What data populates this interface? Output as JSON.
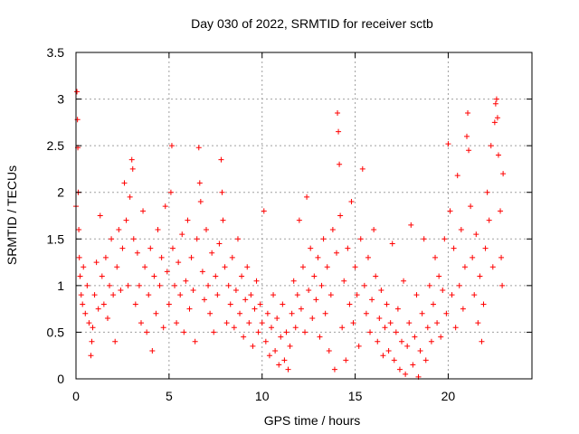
{
  "chart_data": {
    "type": "scatter",
    "title": "Day 030 of 2022, SRMTID for receiver sctb",
    "xlabel": "GPS time / hours",
    "ylabel": "SRMTID / TECUs",
    "xlim": [
      0,
      24.5
    ],
    "ylim": [
      0,
      3.5
    ],
    "grid": true,
    "marker": "plus",
    "color": "#ff0000",
    "x_ticks": [
      0,
      5,
      10,
      15,
      20
    ],
    "x_tick_labels": [
      "0",
      "5",
      "10",
      "15",
      "20"
    ],
    "y_ticks": [
      0,
      0.5,
      1,
      1.5,
      2,
      2.5,
      3,
      3.5
    ],
    "y_tick_labels": [
      "0",
      "0.5",
      "1",
      "1.5",
      "2",
      "2.5",
      "3",
      "3.5"
    ],
    "series": [
      {
        "name": "SRMTID",
        "points": [
          [
            0.0,
            1.85
          ],
          [
            0.05,
            3.08
          ],
          [
            0.08,
            2.78
          ],
          [
            0.1,
            2.48
          ],
          [
            0.12,
            2.0
          ],
          [
            0.15,
            1.6
          ],
          [
            0.18,
            1.3
          ],
          [
            0.22,
            1.1
          ],
          [
            0.28,
            0.9
          ],
          [
            0.35,
            0.8
          ],
          [
            0.4,
            1.2
          ],
          [
            0.5,
            0.7
          ],
          [
            0.6,
            1.0
          ],
          [
            0.7,
            0.6
          ],
          [
            0.8,
            0.25
          ],
          [
            0.85,
            0.4
          ],
          [
            0.9,
            0.55
          ],
          [
            1.0,
            0.9
          ],
          [
            1.1,
            1.25
          ],
          [
            1.2,
            0.75
          ],
          [
            1.3,
            1.75
          ],
          [
            1.4,
            1.1
          ],
          [
            1.5,
            0.8
          ],
          [
            1.6,
            1.3
          ],
          [
            1.7,
            0.65
          ],
          [
            1.8,
            1.0
          ],
          [
            1.9,
            1.5
          ],
          [
            2.0,
            0.9
          ],
          [
            2.1,
            0.4
          ],
          [
            2.2,
            1.2
          ],
          [
            2.3,
            1.6
          ],
          [
            2.4,
            0.95
          ],
          [
            2.5,
            1.4
          ],
          [
            2.6,
            2.1
          ],
          [
            2.7,
            1.7
          ],
          [
            2.8,
            1.0
          ],
          [
            2.9,
            1.95
          ],
          [
            3.0,
            2.35
          ],
          [
            3.05,
            2.25
          ],
          [
            3.1,
            1.5
          ],
          [
            3.2,
            0.8
          ],
          [
            3.3,
            1.35
          ],
          [
            3.4,
            1.0
          ],
          [
            3.5,
            0.6
          ],
          [
            3.6,
            1.8
          ],
          [
            3.7,
            1.2
          ],
          [
            3.8,
            0.5
          ],
          [
            3.9,
            0.9
          ],
          [
            4.0,
            1.4
          ],
          [
            4.1,
            0.3
          ],
          [
            4.2,
            1.1
          ],
          [
            4.3,
            0.7
          ],
          [
            4.4,
            1.6
          ],
          [
            4.5,
            1.0
          ],
          [
            4.6,
            1.3
          ],
          [
            4.7,
            0.55
          ],
          [
            4.8,
            1.85
          ],
          [
            4.9,
            1.15
          ],
          [
            5.0,
            0.8
          ],
          [
            5.1,
            2.0
          ],
          [
            5.15,
            2.5
          ],
          [
            5.2,
            1.4
          ],
          [
            5.3,
            1.0
          ],
          [
            5.4,
            0.6
          ],
          [
            5.5,
            1.25
          ],
          [
            5.6,
            0.9
          ],
          [
            5.7,
            1.55
          ],
          [
            5.8,
            0.5
          ],
          [
            5.9,
            1.05
          ],
          [
            6.0,
            1.7
          ],
          [
            6.1,
            0.75
          ],
          [
            6.2,
            1.3
          ],
          [
            6.3,
            0.95
          ],
          [
            6.4,
            0.4
          ],
          [
            6.5,
            1.5
          ],
          [
            6.6,
            2.48
          ],
          [
            6.65,
            2.1
          ],
          [
            6.7,
            1.9
          ],
          [
            6.8,
            1.15
          ],
          [
            6.9,
            0.85
          ],
          [
            7.0,
            1.6
          ],
          [
            7.1,
            1.0
          ],
          [
            7.2,
            0.7
          ],
          [
            7.3,
            1.35
          ],
          [
            7.4,
            0.5
          ],
          [
            7.5,
            1.1
          ],
          [
            7.6,
            0.9
          ],
          [
            7.7,
            1.45
          ],
          [
            7.8,
            2.35
          ],
          [
            7.85,
            2.0
          ],
          [
            7.9,
            1.7
          ],
          [
            8.0,
            1.2
          ],
          [
            8.1,
            0.6
          ],
          [
            8.2,
            1.0
          ],
          [
            8.3,
            0.8
          ],
          [
            8.4,
            1.3
          ],
          [
            8.5,
            0.55
          ],
          [
            8.6,
            0.95
          ],
          [
            8.7,
            1.5
          ],
          [
            8.8,
            0.7
          ],
          [
            8.9,
            1.1
          ],
          [
            9.0,
            0.45
          ],
          [
            9.1,
            0.85
          ],
          [
            9.2,
            1.2
          ],
          [
            9.3,
            0.6
          ],
          [
            9.4,
            0.9
          ],
          [
            9.5,
            0.35
          ],
          [
            9.6,
            0.75
          ],
          [
            9.7,
            1.05
          ],
          [
            9.8,
            0.5
          ],
          [
            9.9,
            0.8
          ],
          [
            10.0,
            0.6
          ],
          [
            10.1,
            1.8
          ],
          [
            10.2,
            0.4
          ],
          [
            10.3,
            0.7
          ],
          [
            10.4,
            0.25
          ],
          [
            10.5,
            0.55
          ],
          [
            10.6,
            0.9
          ],
          [
            10.7,
            0.3
          ],
          [
            10.8,
            0.65
          ],
          [
            10.9,
            0.15
          ],
          [
            11.0,
            0.45
          ],
          [
            11.1,
            0.8
          ],
          [
            11.2,
            0.2
          ],
          [
            11.3,
            0.5
          ],
          [
            11.4,
            0.1
          ],
          [
            11.5,
            0.35
          ],
          [
            11.6,
            0.7
          ],
          [
            11.7,
            1.05
          ],
          [
            11.8,
            0.55
          ],
          [
            11.9,
            0.9
          ],
          [
            12.0,
            1.7
          ],
          [
            12.1,
            0.75
          ],
          [
            12.2,
            1.2
          ],
          [
            12.3,
            0.5
          ],
          [
            12.4,
            1.95
          ],
          [
            12.5,
            0.95
          ],
          [
            12.6,
            1.4
          ],
          [
            12.7,
            0.65
          ],
          [
            12.8,
            1.1
          ],
          [
            12.9,
            0.85
          ],
          [
            13.0,
            1.3
          ],
          [
            13.1,
            0.45
          ],
          [
            13.2,
            1.0
          ],
          [
            13.3,
            1.5
          ],
          [
            13.4,
            0.7
          ],
          [
            13.5,
            1.2
          ],
          [
            13.6,
            0.3
          ],
          [
            13.7,
            0.9
          ],
          [
            13.8,
            1.6
          ],
          [
            13.9,
            0.1
          ],
          [
            14.0,
            1.35
          ],
          [
            14.05,
            2.85
          ],
          [
            14.1,
            2.65
          ],
          [
            14.15,
            2.3
          ],
          [
            14.2,
            1.75
          ],
          [
            14.3,
            0.55
          ],
          [
            14.4,
            1.05
          ],
          [
            14.5,
            0.2
          ],
          [
            14.6,
            1.4
          ],
          [
            14.7,
            0.8
          ],
          [
            14.8,
            1.9
          ],
          [
            14.9,
            0.6
          ],
          [
            15.0,
            1.2
          ],
          [
            15.1,
            0.9
          ],
          [
            15.2,
            0.35
          ],
          [
            15.3,
            1.5
          ],
          [
            15.4,
            2.25
          ],
          [
            15.5,
            1.0
          ],
          [
            15.6,
            0.7
          ],
          [
            15.7,
            1.3
          ],
          [
            15.8,
            0.5
          ],
          [
            15.9,
            0.85
          ],
          [
            16.0,
            1.6
          ],
          [
            16.1,
            1.1
          ],
          [
            16.2,
            0.4
          ],
          [
            16.3,
            0.65
          ],
          [
            16.4,
            0.95
          ],
          [
            16.5,
            0.25
          ],
          [
            16.6,
            0.55
          ],
          [
            16.7,
            0.8
          ],
          [
            16.8,
            0.3
          ],
          [
            16.9,
            0.6
          ],
          [
            17.0,
            1.45
          ],
          [
            17.1,
            0.2
          ],
          [
            17.2,
            0.5
          ],
          [
            17.3,
            0.75
          ],
          [
            17.4,
            0.1
          ],
          [
            17.5,
            0.4
          ],
          [
            17.6,
            1.05
          ],
          [
            17.7,
            0.05
          ],
          [
            17.8,
            0.35
          ],
          [
            17.9,
            0.6
          ],
          [
            18.0,
            1.65
          ],
          [
            18.1,
            0.15
          ],
          [
            18.2,
            0.45
          ],
          [
            18.3,
            0.9
          ],
          [
            18.4,
            0.02
          ],
          [
            18.5,
            0.3
          ],
          [
            18.6,
            0.7
          ],
          [
            18.7,
            1.5
          ],
          [
            18.8,
            0.2
          ],
          [
            18.9,
            0.55
          ],
          [
            19.0,
            1.0
          ],
          [
            19.1,
            0.4
          ],
          [
            19.2,
            0.8
          ],
          [
            19.3,
            1.3
          ],
          [
            19.4,
            0.6
          ],
          [
            19.5,
            1.1
          ],
          [
            19.6,
            0.45
          ],
          [
            19.7,
            0.95
          ],
          [
            19.8,
            1.5
          ],
          [
            19.9,
            0.7
          ],
          [
            20.0,
            2.52
          ],
          [
            20.1,
            1.8
          ],
          [
            20.2,
            0.9
          ],
          [
            20.3,
            1.4
          ],
          [
            20.4,
            0.55
          ],
          [
            20.5,
            2.18
          ],
          [
            20.6,
            1.0
          ],
          [
            20.7,
            1.6
          ],
          [
            20.8,
            0.75
          ],
          [
            20.9,
            1.2
          ],
          [
            21.0,
            2.6
          ],
          [
            21.05,
            2.85
          ],
          [
            21.1,
            2.45
          ],
          [
            21.2,
            1.85
          ],
          [
            21.3,
            1.3
          ],
          [
            21.4,
            0.9
          ],
          [
            21.5,
            1.55
          ],
          [
            21.6,
            0.6
          ],
          [
            21.7,
            1.1
          ],
          [
            21.8,
            0.4
          ],
          [
            21.9,
            0.8
          ],
          [
            22.0,
            1.4
          ],
          [
            22.1,
            2.0
          ],
          [
            22.2,
            1.7
          ],
          [
            22.3,
            2.5
          ],
          [
            22.4,
            1.2
          ],
          [
            22.5,
            2.75
          ],
          [
            22.55,
            2.95
          ],
          [
            22.6,
            3.0
          ],
          [
            22.65,
            2.8
          ],
          [
            22.7,
            2.4
          ],
          [
            22.8,
            1.8
          ],
          [
            22.85,
            1.3
          ],
          [
            22.9,
            1.0
          ],
          [
            22.95,
            2.2
          ]
        ]
      }
    ]
  }
}
